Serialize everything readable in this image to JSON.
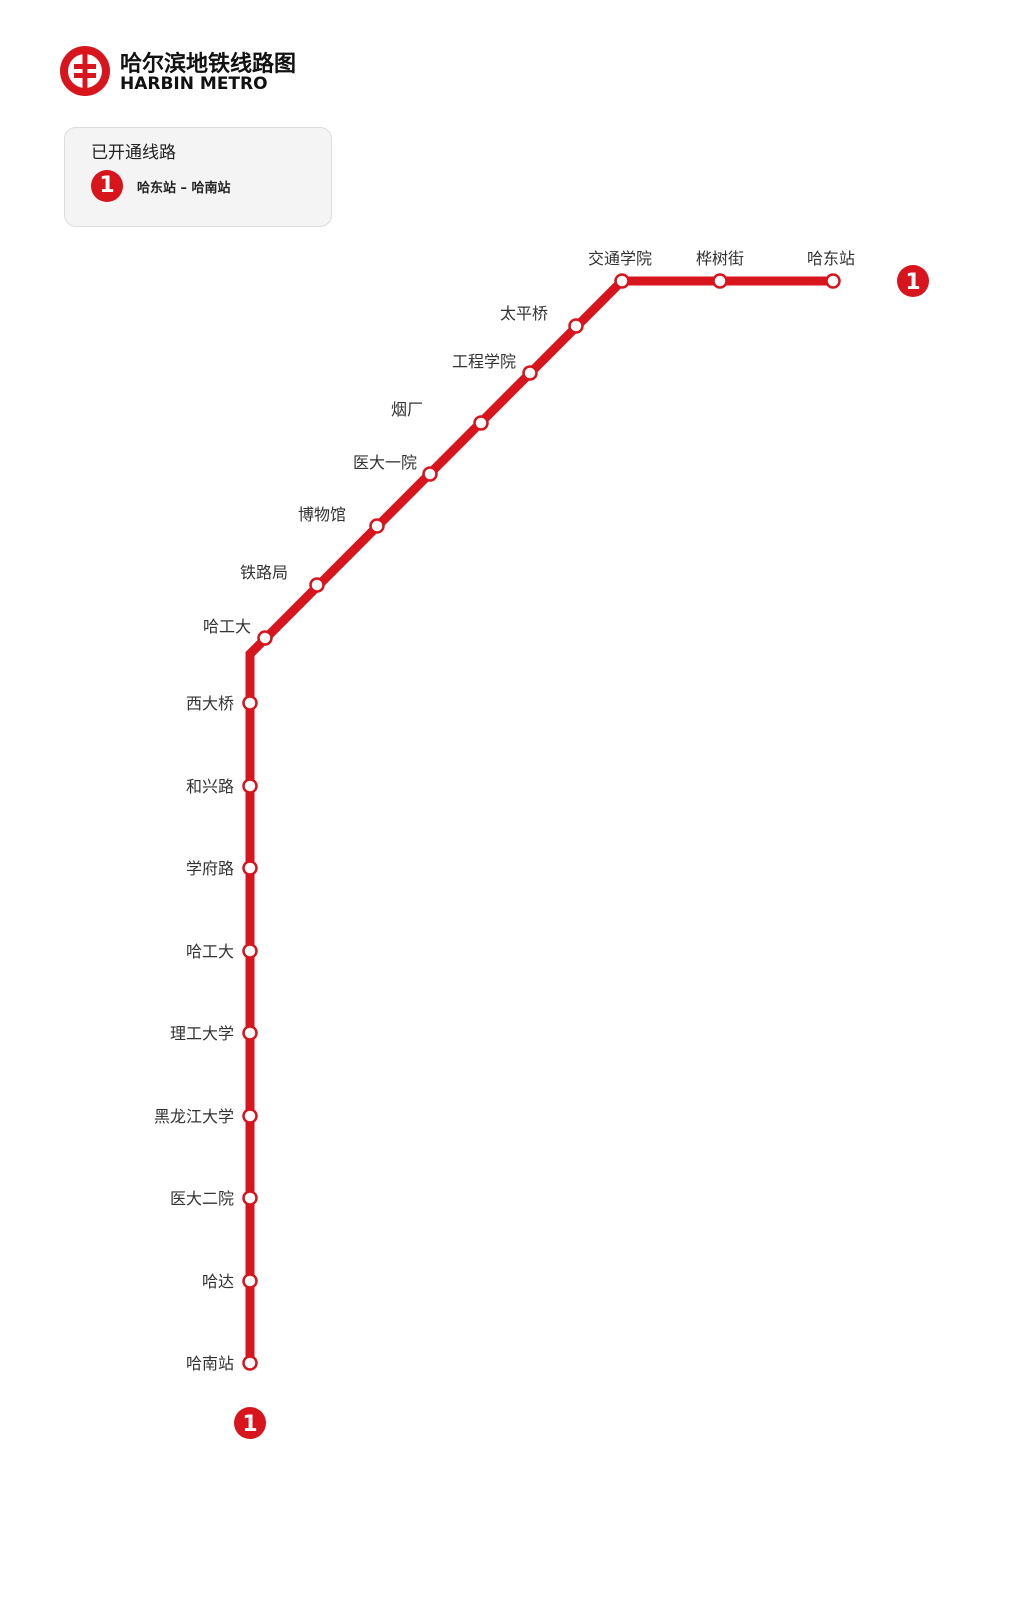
{
  "header": {
    "title_cn": "哈尔滨地铁线路图",
    "title_en": "HARBIN METRO"
  },
  "legend": {
    "title": "已开通线路",
    "lines": [
      {
        "number": "1",
        "label": "哈东站 – 哈南站",
        "color": "#d8141c"
      }
    ]
  },
  "line": {
    "number": "1",
    "color": "#d8141c",
    "stations": [
      "哈东站",
      "桦树街",
      "交通学院",
      "太平桥",
      "工程学院",
      "烟厂",
      "医大一院",
      "博物馆",
      "铁路局",
      "哈工大",
      "西大桥",
      "和兴路",
      "学府路",
      "哈工大",
      "理工大学",
      "黑龙江大学",
      "医大二院",
      "哈达",
      "哈南站"
    ]
  },
  "icons": {
    "logo": "harbin-metro-logo",
    "line_badge": "line-number-badge"
  }
}
